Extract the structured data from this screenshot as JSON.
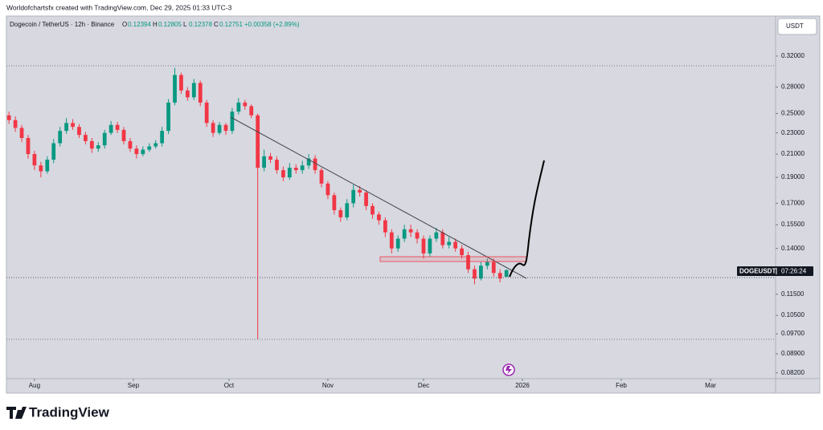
{
  "chart_data": {
    "type": "candlestick",
    "attribution": "Worldofchartsfx created with TradingView.com, Dec 29, 2025 01:33 UTC-3",
    "symbol": "Dogecoin / TetherUS · 12h · Binance",
    "ohlc_legend": [
      {
        "label": "O",
        "value": "0.12394"
      },
      {
        "label": "H",
        "value": "0.12805"
      },
      {
        "label": "L",
        "value": "0.12378"
      },
      {
        "label": "C",
        "value": "0.12751"
      }
    ],
    "change": "+0.00358 (+2.89%)",
    "currency_button": "USDT",
    "price_tag": {
      "ticker": "DOGEUSDT",
      "countdown": "07:26:24"
    },
    "brand": "TradingView",
    "up_color": "#089981",
    "down_color": "#f23645",
    "log_scale": true,
    "open": [
      0.248,
      0.243,
      0.235,
      0.225,
      0.21,
      0.2,
      0.195,
      0.205,
      0.22,
      0.232,
      0.24,
      0.236,
      0.228,
      0.222,
      0.215,
      0.218,
      0.23,
      0.238,
      0.233,
      0.222,
      0.215,
      0.21,
      0.214,
      0.217,
      0.22,
      0.232,
      0.262,
      0.295,
      0.276,
      0.268,
      0.285,
      0.262,
      0.24,
      0.23,
      0.238,
      0.232,
      0.252,
      0.262,
      0.258,
      0.248,
      0.198,
      0.208,
      0.205,
      0.196,
      0.19,
      0.198,
      0.196,
      0.2,
      0.206,
      0.196,
      0.185,
      0.176,
      0.165,
      0.16,
      0.17,
      0.18,
      0.178,
      0.168,
      0.162,
      0.158,
      0.15,
      0.14,
      0.146,
      0.152,
      0.15,
      0.146,
      0.137,
      0.146,
      0.15,
      0.142,
      0.144,
      0.14,
      0.136,
      0.128,
      0.123,
      0.13,
      0.132,
      0.126,
      0.12394
    ],
    "high": [
      0.252,
      0.247,
      0.238,
      0.228,
      0.213,
      0.203,
      0.208,
      0.224,
      0.236,
      0.245,
      0.244,
      0.239,
      0.231,
      0.225,
      0.221,
      0.233,
      0.242,
      0.241,
      0.236,
      0.225,
      0.218,
      0.217,
      0.22,
      0.223,
      0.236,
      0.266,
      0.304,
      0.298,
      0.28,
      0.29,
      0.288,
      0.265,
      0.243,
      0.241,
      0.24,
      0.256,
      0.267,
      0.265,
      0.26,
      0.25,
      0.214,
      0.211,
      0.208,
      0.199,
      0.202,
      0.201,
      0.204,
      0.21,
      0.209,
      0.198,
      0.187,
      0.178,
      0.167,
      0.173,
      0.184,
      0.183,
      0.18,
      0.17,
      0.164,
      0.16,
      0.152,
      0.148,
      0.155,
      0.155,
      0.152,
      0.148,
      0.148,
      0.153,
      0.152,
      0.147,
      0.146,
      0.142,
      0.138,
      0.13,
      0.132,
      0.134,
      0.134,
      0.128,
      0.12805
    ],
    "low": [
      0.239,
      0.231,
      0.221,
      0.206,
      0.196,
      0.19,
      0.193,
      0.202,
      0.217,
      0.229,
      0.233,
      0.225,
      0.219,
      0.211,
      0.212,
      0.215,
      0.228,
      0.23,
      0.219,
      0.212,
      0.206,
      0.208,
      0.212,
      0.215,
      0.217,
      0.229,
      0.259,
      0.272,
      0.264,
      0.265,
      0.258,
      0.236,
      0.226,
      0.228,
      0.228,
      0.229,
      0.249,
      0.254,
      0.245,
      0.0947,
      0.195,
      0.202,
      0.193,
      0.187,
      0.188,
      0.193,
      0.193,
      0.197,
      0.193,
      0.182,
      0.173,
      0.162,
      0.157,
      0.158,
      0.167,
      0.175,
      0.165,
      0.159,
      0.155,
      0.147,
      0.137,
      0.138,
      0.144,
      0.147,
      0.143,
      0.134,
      0.135,
      0.144,
      0.14,
      0.14,
      0.138,
      0.134,
      0.126,
      0.12,
      0.122,
      0.128,
      0.124,
      0.121,
      0.12378
    ],
    "close": [
      0.243,
      0.235,
      0.225,
      0.21,
      0.2,
      0.195,
      0.205,
      0.22,
      0.232,
      0.24,
      0.236,
      0.228,
      0.222,
      0.215,
      0.218,
      0.23,
      0.238,
      0.233,
      0.222,
      0.215,
      0.21,
      0.214,
      0.217,
      0.22,
      0.232,
      0.262,
      0.295,
      0.276,
      0.268,
      0.285,
      0.262,
      0.24,
      0.23,
      0.238,
      0.232,
      0.252,
      0.262,
      0.258,
      0.248,
      0.198,
      0.208,
      0.205,
      0.196,
      0.19,
      0.198,
      0.196,
      0.2,
      0.206,
      0.196,
      0.185,
      0.176,
      0.165,
      0.16,
      0.17,
      0.18,
      0.178,
      0.168,
      0.162,
      0.158,
      0.15,
      0.14,
      0.146,
      0.152,
      0.15,
      0.146,
      0.137,
      0.146,
      0.15,
      0.142,
      0.144,
      0.14,
      0.136,
      0.128,
      0.123,
      0.13,
      0.132,
      0.126,
      0.123,
      0.12751
    ],
    "xlim": [
      -0.4,
      120.2
    ],
    "xticks": [
      {
        "value": 4,
        "label": "Aug"
      },
      {
        "value": 19.5,
        "label": "Sep"
      },
      {
        "value": 34.5,
        "label": "Oct"
      },
      {
        "value": 50,
        "label": "Nov"
      },
      {
        "value": 65,
        "label": "Dec"
      },
      {
        "value": 80.5,
        "label": "2026"
      },
      {
        "value": 96,
        "label": "Feb"
      },
      {
        "value": 110,
        "label": "Mar"
      }
    ],
    "ylim": [
      0.08,
      0.38
    ],
    "yticks": [
      {
        "value": 0.32,
        "label": "0.32000"
      },
      {
        "value": 0.28,
        "label": "0.28000"
      },
      {
        "value": 0.25,
        "label": "0.25000"
      },
      {
        "value": 0.23,
        "label": "0.23000"
      },
      {
        "value": 0.21,
        "label": "0.21000"
      },
      {
        "value": 0.19,
        "label": "0.19000"
      },
      {
        "value": 0.17,
        "label": "0.17000"
      },
      {
        "value": 0.155,
        "label": "0.15500"
      },
      {
        "value": 0.14,
        "label": "0.14000"
      },
      {
        "value": 0.115,
        "label": "0.11500"
      },
      {
        "value": 0.105,
        "label": "0.10500"
      },
      {
        "value": 0.097,
        "label": "0.09700"
      },
      {
        "value": 0.089,
        "label": "0.08900"
      },
      {
        "value": 0.082,
        "label": "0.08200"
      }
    ]
  }
}
